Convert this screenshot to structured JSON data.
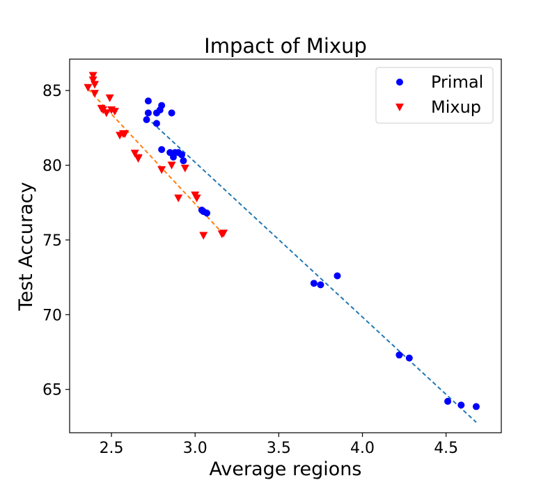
{
  "chart_data": {
    "type": "scatter",
    "title": "Impact of Mixup",
    "xlabel": "Average regions",
    "ylabel": "Test Accuracy",
    "xlim": [
      2.25,
      4.83
    ],
    "ylim": [
      62.1,
      87.1
    ],
    "xticks": [
      "2.5",
      "3.0",
      "3.5",
      "4.0",
      "4.5"
    ],
    "yticks": [
      "65",
      "70",
      "75",
      "80",
      "85"
    ],
    "grid": false,
    "legend_position": "top-right",
    "series": [
      {
        "name": "Primal",
        "marker": "circle",
        "color": "#0000ff",
        "trend_color": "#1f77b4",
        "trend": [
          [
            2.71,
            83.2
          ],
          [
            4.68,
            62.8
          ]
        ],
        "points": [
          [
            2.71,
            83.05
          ],
          [
            2.72,
            83.5
          ],
          [
            2.72,
            84.3
          ],
          [
            2.77,
            83.5
          ],
          [
            2.77,
            82.8
          ],
          [
            2.79,
            83.7
          ],
          [
            2.8,
            84.0
          ],
          [
            2.86,
            83.5
          ],
          [
            2.8,
            81.05
          ],
          [
            2.85,
            80.85
          ],
          [
            2.87,
            80.55
          ],
          [
            2.88,
            80.85
          ],
          [
            2.9,
            80.85
          ],
          [
            2.92,
            80.7
          ],
          [
            2.93,
            80.3
          ],
          [
            3.04,
            77.0
          ],
          [
            3.05,
            76.9
          ],
          [
            3.07,
            76.8
          ],
          [
            3.71,
            72.1
          ],
          [
            3.75,
            72.0
          ],
          [
            3.85,
            72.6
          ],
          [
            4.22,
            67.3
          ],
          [
            4.28,
            67.1
          ],
          [
            4.51,
            64.2
          ],
          [
            4.59,
            63.95
          ],
          [
            4.68,
            63.85
          ]
        ]
      },
      {
        "name": "Mixup",
        "marker": "triangle-down",
        "color": "#ff0000",
        "trend_color": "#ff7f0e",
        "trend": [
          [
            2.36,
            85.1
          ],
          [
            3.16,
            75.5
          ]
        ],
        "points": [
          [
            2.36,
            85.2
          ],
          [
            2.39,
            86.0
          ],
          [
            2.39,
            85.7
          ],
          [
            2.4,
            85.4
          ],
          [
            2.4,
            84.8
          ],
          [
            2.44,
            83.8
          ],
          [
            2.45,
            83.7
          ],
          [
            2.47,
            83.5
          ],
          [
            2.49,
            84.5
          ],
          [
            2.5,
            83.7
          ],
          [
            2.52,
            83.6
          ],
          [
            2.55,
            82.0
          ],
          [
            2.57,
            82.1
          ],
          [
            2.58,
            82.1
          ],
          [
            2.64,
            80.8
          ],
          [
            2.66,
            80.5
          ],
          [
            2.66,
            80.45
          ],
          [
            2.8,
            79.7
          ],
          [
            2.86,
            80.0
          ],
          [
            2.9,
            77.8
          ],
          [
            2.94,
            79.8
          ],
          [
            3.0,
            78.0
          ],
          [
            3.01,
            77.8
          ],
          [
            3.05,
            75.3
          ],
          [
            3.16,
            75.4
          ],
          [
            3.17,
            75.45
          ]
        ]
      }
    ]
  }
}
